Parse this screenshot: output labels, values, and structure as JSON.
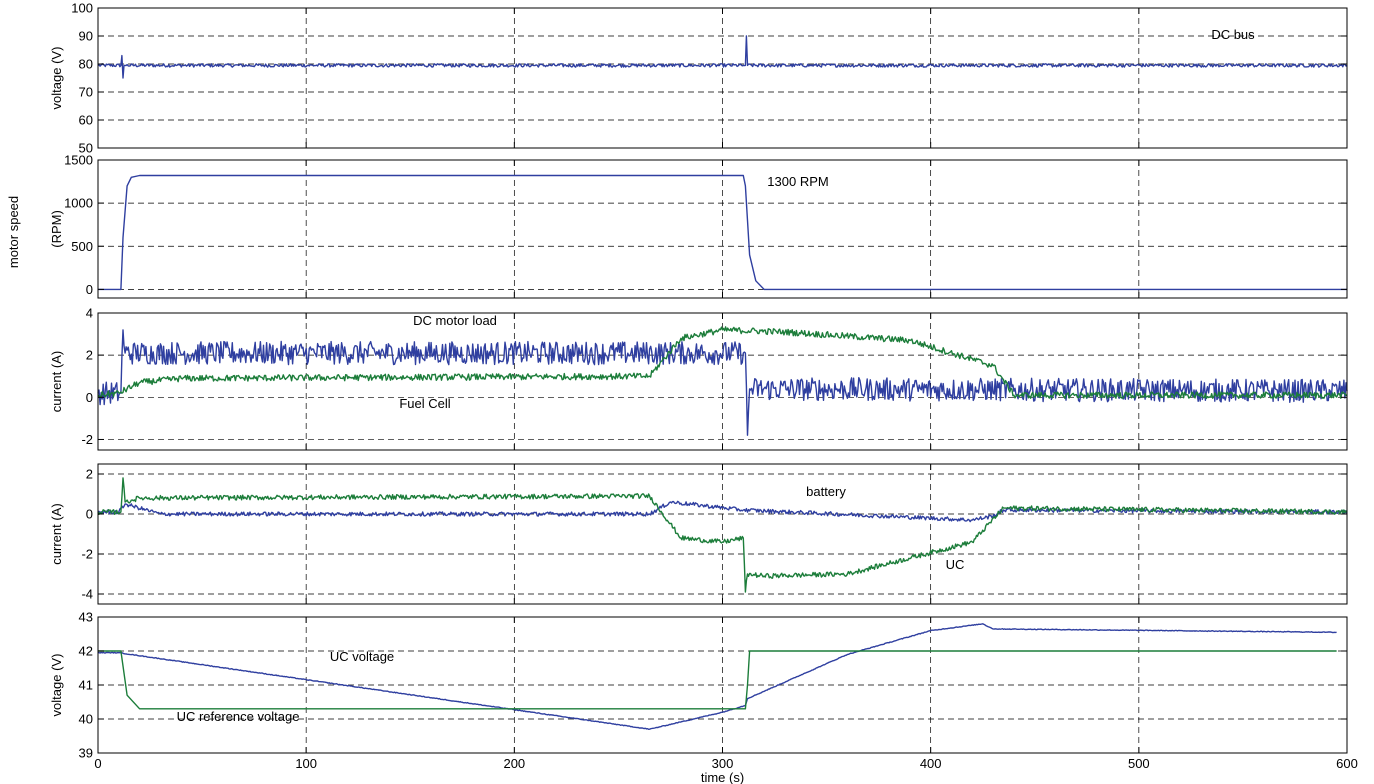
{
  "chart_data": [
    {
      "type": "line",
      "ylabel": "voltage (V)",
      "xlim": [
        0,
        600
      ],
      "ylim": [
        50,
        100
      ],
      "yticks": [
        50,
        60,
        70,
        80,
        90,
        100
      ],
      "grid": true,
      "annotations": [
        "DC bus"
      ],
      "series": [
        {
          "name": "DC bus",
          "color": "#2f3fa0",
          "noise": 0.6,
          "x": [
            0,
            11,
            11.5,
            12,
            12.5,
            13,
            310,
            311,
            311.5,
            312,
            600
          ],
          "y": [
            79.5,
            79.5,
            83,
            75,
            79.5,
            79.5,
            79.5,
            79.5,
            90,
            79.5,
            79.5
          ]
        }
      ]
    },
    {
      "type": "line",
      "ylabel": "(RPM)",
      "xlim": [
        0,
        600
      ],
      "ylim": [
        -100,
        1500
      ],
      "yticks": [
        0,
        500,
        1000,
        1500
      ],
      "grid": true,
      "annotations": [
        "1300 RPM"
      ],
      "series": [
        {
          "name": "motor speed",
          "color": "#2f3fa0",
          "noise": 0,
          "x": [
            0,
            11,
            12,
            14,
            16,
            20,
            310,
            311,
            313,
            316,
            320,
            600
          ],
          "y": [
            0,
            0,
            600,
            1200,
            1300,
            1320,
            1320,
            1200,
            400,
            100,
            0,
            0
          ]
        }
      ]
    },
    {
      "type": "line",
      "ylabel": "current (A)",
      "xlim": [
        0,
        600
      ],
      "ylim": [
        -2.5,
        4
      ],
      "yticks": [
        -2,
        0,
        2,
        4
      ],
      "grid": true,
      "annotations": [
        "DC motor load",
        "Fuel Cell"
      ],
      "series": [
        {
          "name": "DC motor load",
          "color": "#2f3fa0",
          "noise": 0.55,
          "x": [
            0,
            11,
            12,
            13,
            310,
            311,
            312,
            313,
            600
          ],
          "y": [
            0.2,
            0.2,
            3.2,
            2.1,
            2.1,
            2.1,
            -1.8,
            0.4,
            0.3
          ]
        },
        {
          "name": "Fuel Cell",
          "color": "#1c7d3a",
          "noise": 0.15,
          "x": [
            0,
            10,
            20,
            40,
            265,
            280,
            300,
            330,
            390,
            430,
            440,
            600
          ],
          "y": [
            0.1,
            0.2,
            0.7,
            0.9,
            1.0,
            2.8,
            3.2,
            3.1,
            2.7,
            1.5,
            0.1,
            0.1
          ]
        }
      ]
    },
    {
      "type": "line",
      "ylabel": "current (A)",
      "xlim": [
        0,
        600
      ],
      "ylim": [
        -4.5,
        2.5
      ],
      "yticks": [
        -4,
        -2,
        0,
        2
      ],
      "grid": true,
      "annotations": [
        "battery",
        "UC"
      ],
      "series": [
        {
          "name": "battery",
          "color": "#2f3fa0",
          "noise": 0.1,
          "x": [
            0,
            10,
            13,
            30,
            265,
            275,
            310,
            420,
            430,
            435,
            600
          ],
          "y": [
            0.1,
            0.1,
            0.5,
            0.0,
            0.0,
            0.6,
            0.2,
            -0.3,
            -0.1,
            0.2,
            0.1
          ]
        },
        {
          "name": "UC",
          "color": "#1c7d3a",
          "noise": 0.12,
          "x": [
            0,
            11,
            12,
            13,
            20,
            265,
            280,
            300,
            310,
            311,
            312,
            320,
            360,
            420,
            435,
            600
          ],
          "y": [
            0.1,
            0.1,
            1.8,
            0.6,
            0.8,
            0.9,
            -1.2,
            -1.4,
            -1.2,
            -3.9,
            -3.0,
            -3.1,
            -3.0,
            -1.4,
            0.3,
            0.1
          ]
        }
      ]
    },
    {
      "type": "line",
      "ylabel": "voltage (V)",
      "xlabel": "time (s)",
      "xlim": [
        0,
        600
      ],
      "ylim": [
        39,
        43
      ],
      "yticks": [
        39,
        40,
        41,
        42,
        43
      ],
      "xticks": [
        0,
        100,
        200,
        300,
        400,
        500,
        600
      ],
      "grid": true,
      "annotations": [
        "UC voltage",
        "UC reference voltage"
      ],
      "series": [
        {
          "name": "UC voltage",
          "color": "#2f3fa0",
          "noise": 0.01,
          "x": [
            0,
            10,
            265,
            300,
            311,
            312,
            360,
            400,
            425,
            430,
            595
          ],
          "y": [
            41.95,
            41.95,
            39.7,
            40.2,
            40.4,
            40.6,
            41.9,
            42.6,
            42.8,
            42.65,
            42.55
          ]
        },
        {
          "name": "UC reference voltage",
          "color": "#1c7d3a",
          "noise": 0,
          "x": [
            0,
            11,
            14,
            20,
            311,
            312,
            313,
            595
          ],
          "y": [
            42.0,
            42.0,
            40.7,
            40.3,
            40.3,
            41.0,
            42.0,
            42.0
          ]
        }
      ]
    }
  ],
  "figure": {
    "outer_ylabel": "motor speed"
  }
}
